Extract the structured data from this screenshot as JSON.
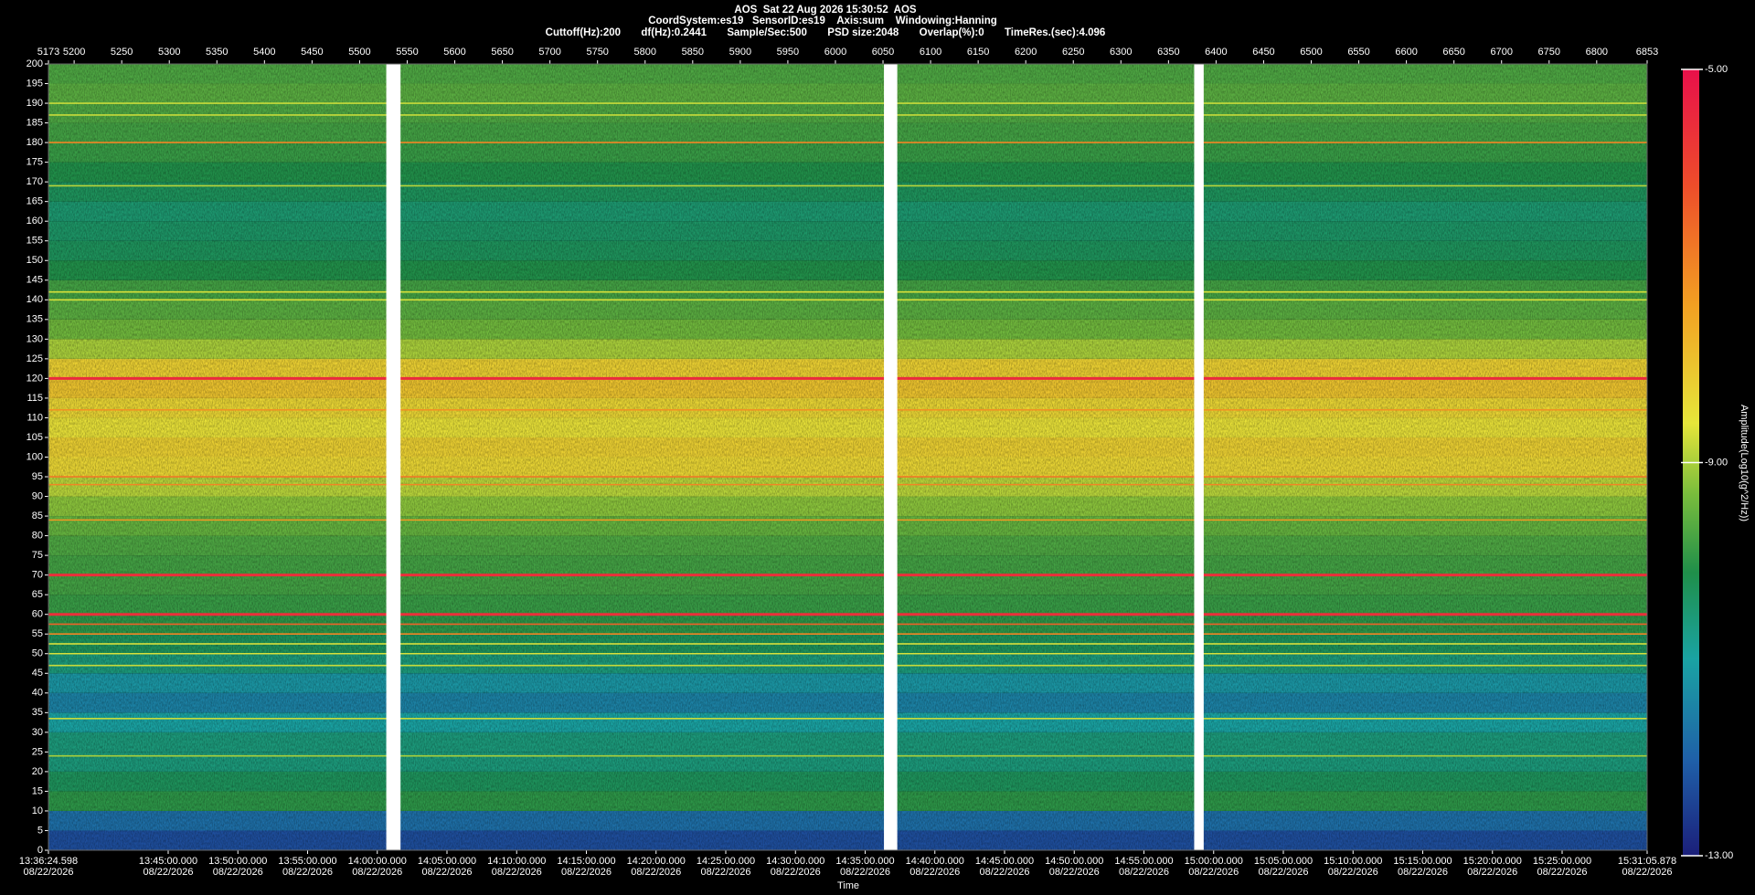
{
  "chart_data": {
    "type": "spectrogram",
    "title": "AOS  Sat 22 Aug 2026 15:30:52  AOS",
    "subtitle": [
      "CoordSystem:es19   SensorID:es19    Axis:sum    Windowing:Hanning",
      "Cuttoff(Hz):200       df(Hz):0.2441       Sample/Sec:500       PSD size:2048       Overlap(%):0       TimeRes.(sec):4.096"
    ],
    "xlabel": "Time",
    "xlim": [
      5173,
      6853
    ],
    "xticks": [
      5173,
      5200,
      5250,
      5300,
      5350,
      5400,
      5450,
      5500,
      5550,
      5600,
      5650,
      5700,
      5750,
      5800,
      5850,
      5900,
      5950,
      6000,
      6050,
      6100,
      6150,
      6200,
      6250,
      6300,
      6350,
      6400,
      6450,
      6500,
      6550,
      6600,
      6650,
      6700,
      6750,
      6800,
      6853
    ],
    "time_ticks": [
      {
        "time": "13:36:24.598",
        "date": "08/22/2026"
      },
      {
        "time": "13:45:00.000",
        "date": "08/22/2026"
      },
      {
        "time": "13:50:00.000",
        "date": "08/22/2026"
      },
      {
        "time": "13:55:00.000",
        "date": "08/22/2026"
      },
      {
        "time": "14:00:00.000",
        "date": "08/22/2026"
      },
      {
        "time": "14:05:00.000",
        "date": "08/22/2026"
      },
      {
        "time": "14:10:00.000",
        "date": "08/22/2026"
      },
      {
        "time": "14:15:00.000",
        "date": "08/22/2026"
      },
      {
        "time": "14:20:00.000",
        "date": "08/22/2026"
      },
      {
        "time": "14:25:00.000",
        "date": "08/22/2026"
      },
      {
        "time": "14:30:00.000",
        "date": "08/22/2026"
      },
      {
        "time": "14:35:00.000",
        "date": "08/22/2026"
      },
      {
        "time": "14:40:00.000",
        "date": "08/22/2026"
      },
      {
        "time": "14:45:00.000",
        "date": "08/22/2026"
      },
      {
        "time": "14:50:00.000",
        "date": "08/22/2026"
      },
      {
        "time": "14:55:00.000",
        "date": "08/22/2026"
      },
      {
        "time": "15:00:00.000",
        "date": "08/22/2026"
      },
      {
        "time": "15:05:00.000",
        "date": "08/22/2026"
      },
      {
        "time": "15:10:00.000",
        "date": "08/22/2026"
      },
      {
        "time": "15:15:00.000",
        "date": "08/22/2026"
      },
      {
        "time": "15:20:00.000",
        "date": "08/22/2026"
      },
      {
        "time": "15:25:00.000",
        "date": "08/22/2026"
      },
      {
        "time": "15:31:05.878",
        "date": "08/22/2026"
      }
    ],
    "ylim": [
      0,
      200
    ],
    "yticks": [
      0,
      5,
      10,
      15,
      20,
      25,
      30,
      35,
      40,
      45,
      50,
      55,
      60,
      65,
      70,
      75,
      80,
      85,
      90,
      95,
      100,
      105,
      110,
      115,
      120,
      125,
      130,
      135,
      140,
      145,
      150,
      155,
      160,
      165,
      170,
      175,
      180,
      185,
      190,
      195,
      200
    ],
    "zlim": [
      -13,
      -5
    ],
    "zticks": [
      {
        "value": -5,
        "label": "-5.00"
      },
      {
        "value": -9,
        "label": "-9.00"
      },
      {
        "value": -13,
        "label": "-13.00"
      }
    ],
    "zlabel": "Amplitude(Log10(g^2/Hz))",
    "background": {
      "freq": [
        0,
        5,
        10,
        15,
        20,
        25,
        30,
        35,
        40,
        45,
        50,
        55,
        60,
        65,
        70,
        75,
        80,
        85,
        90,
        95,
        100,
        105,
        110,
        115,
        120,
        125,
        130,
        135,
        140,
        145,
        150,
        155,
        160,
        165,
        170,
        175,
        180,
        185,
        190,
        195
      ],
      "level": [
        -12.3,
        -11.8,
        -10.0,
        -10.3,
        -10.6,
        -10.6,
        -11.0,
        -11.5,
        -11.2,
        -10.6,
        -10.3,
        -10.0,
        -9.9,
        -9.8,
        -9.8,
        -9.7,
        -9.5,
        -9.2,
        -8.9,
        -8.3,
        -8.2,
        -8.5,
        -8.3,
        -8.0,
        -8.2,
        -9.0,
        -9.4,
        -9.6,
        -9.8,
        -10.1,
        -10.3,
        -10.4,
        -10.5,
        -10.3,
        -10.1,
        -9.9,
        -9.8,
        -9.7,
        -9.6,
        -9.7
      ]
    },
    "tones": [
      {
        "freq": 187,
        "level": -8.8
      },
      {
        "freq": 190,
        "level": -8.8
      },
      {
        "freq": 180,
        "level": -7.0
      },
      {
        "freq": 169,
        "level": -8.9
      },
      {
        "freq": 142,
        "level": -8.7
      },
      {
        "freq": 140,
        "level": -8.7
      },
      {
        "freq": 120,
        "level": -5.5
      },
      {
        "freq": 112,
        "level": -7.2
      },
      {
        "freq": 95,
        "level": -6.8
      },
      {
        "freq": 93,
        "level": -7.0
      },
      {
        "freq": 84,
        "level": -7.3
      },
      {
        "freq": 70,
        "level": -5.6
      },
      {
        "freq": 60,
        "level": -5.6
      },
      {
        "freq": 57.5,
        "level": -6.5
      },
      {
        "freq": 55,
        "level": -7.0
      },
      {
        "freq": 52.5,
        "level": -8.6
      },
      {
        "freq": 50,
        "level": -8.7
      },
      {
        "freq": 47,
        "level": -8.8
      },
      {
        "freq": 33.5,
        "level": -8.8
      },
      {
        "freq": 24,
        "level": -9.0
      }
    ],
    "gaps": [
      [
        5528,
        5543
      ],
      [
        6051,
        6065
      ],
      [
        6377,
        6387
      ]
    ]
  }
}
